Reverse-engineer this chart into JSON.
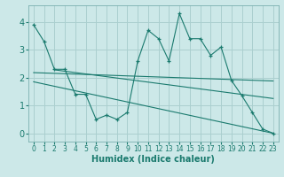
{
  "xlabel": "Humidex (Indice chaleur)",
  "background_color": "#cce8e8",
  "grid_color": "#aacfcf",
  "line_color": "#1a7a6e",
  "xlim": [
    -0.5,
    23.5
  ],
  "ylim": [
    -0.3,
    4.6
  ],
  "yticks": [
    0,
    1,
    2,
    3,
    4
  ],
  "xticks": [
    0,
    1,
    2,
    3,
    4,
    5,
    6,
    7,
    8,
    9,
    10,
    11,
    12,
    13,
    14,
    15,
    16,
    17,
    18,
    19,
    20,
    21,
    22,
    23
  ],
  "series1_x": [
    0,
    1,
    2,
    3,
    4,
    5,
    6,
    7,
    8,
    9,
    10,
    11,
    12,
    13,
    14,
    15,
    16,
    17,
    18,
    19,
    20,
    21,
    22,
    23
  ],
  "series1_y": [
    3.9,
    3.3,
    2.3,
    2.3,
    1.4,
    1.4,
    0.5,
    0.65,
    0.5,
    0.75,
    2.6,
    3.7,
    3.4,
    2.6,
    4.3,
    3.4,
    3.4,
    2.8,
    3.1,
    1.9,
    1.35,
    0.75,
    0.15,
    0.0
  ],
  "series2_x": [
    2,
    23
  ],
  "series2_y": [
    2.28,
    1.25
  ],
  "series3_x": [
    0,
    23
  ],
  "series3_y": [
    2.18,
    1.88
  ],
  "series4_x": [
    0,
    23
  ],
  "series4_y": [
    1.85,
    0.0
  ],
  "xlabel_fontsize": 7,
  "ytick_fontsize": 7,
  "xtick_fontsize": 5.5
}
